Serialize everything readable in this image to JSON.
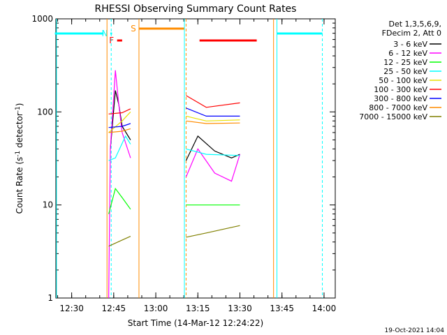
{
  "chart_data": {
    "type": "line",
    "title": "RHESSI Observing Summary Count Rates",
    "xlabel": "Start Time (14-Mar-12 12:24:22)",
    "ylabel": "Count Rate (s",
    "ylabel_sup": "-1",
    "ylabel_mid": " detector",
    "ylabel_sup2": "-1",
    "ylabel_end": ")",
    "yscale": "log",
    "ylim": [
      1,
      1000
    ],
    "xlim": [
      "12:24:22",
      "14:04:00"
    ],
    "xticks": [
      "12:30",
      "12:45",
      "13:00",
      "13:15",
      "13:30",
      "13:45",
      "14:00"
    ],
    "yticks": [
      "1",
      "10",
      "100",
      "1000"
    ],
    "legend_header": [
      "Det 1,3,5,6,9,",
      "FDecim 2, Att 0"
    ],
    "series": [
      {
        "name": "3 - 6 keV",
        "color": "#000000",
        "values": [
          [
            12.73,
            40
          ],
          [
            12.76,
            170
          ],
          [
            12.78,
            120
          ],
          [
            12.8,
            70
          ],
          [
            12.85,
            50
          ],
          [
            13.18,
            30
          ],
          [
            13.25,
            55
          ],
          [
            13.35,
            38
          ],
          [
            13.45,
            32
          ],
          [
            13.5,
            35
          ]
        ]
      },
      {
        "name": "6 - 12 keV",
        "color": "#ff00ff",
        "values": [
          [
            12.72,
            1
          ],
          [
            12.73,
            40
          ],
          [
            12.76,
            280
          ],
          [
            12.78,
            120
          ],
          [
            12.8,
            60
          ],
          [
            12.85,
            32
          ],
          [
            13.18,
            20
          ],
          [
            13.25,
            40
          ],
          [
            13.35,
            22
          ],
          [
            13.45,
            18
          ],
          [
            13.5,
            35
          ]
        ]
      },
      {
        "name": "12 - 25 keV",
        "color": "#00ff00",
        "values": [
          [
            12.72,
            8
          ],
          [
            12.76,
            15
          ],
          [
            12.8,
            12
          ],
          [
            12.85,
            9
          ],
          [
            13.18,
            10
          ],
          [
            13.3,
            10
          ],
          [
            13.5,
            10
          ]
        ]
      },
      {
        "name": "25 - 50 keV",
        "color": "#00ffff",
        "values": [
          [
            12.72,
            30
          ],
          [
            12.76,
            32
          ],
          [
            12.82,
            55
          ],
          [
            12.85,
            45
          ],
          [
            13.18,
            40
          ],
          [
            13.3,
            35
          ],
          [
            13.5,
            34
          ]
        ]
      },
      {
        "name": "50 - 100 keV",
        "color": "#e8e000",
        "values": [
          [
            12.72,
            60
          ],
          [
            12.8,
            80
          ],
          [
            12.85,
            100
          ],
          [
            13.18,
            90
          ],
          [
            13.3,
            80
          ],
          [
            13.5,
            82
          ]
        ]
      },
      {
        "name": "100 - 300 keV",
        "color": "#ff0000",
        "values": [
          [
            12.72,
            95
          ],
          [
            12.8,
            98
          ],
          [
            12.85,
            108
          ],
          [
            13.18,
            150
          ],
          [
            13.3,
            112
          ],
          [
            13.5,
            125
          ]
        ]
      },
      {
        "name": "300 - 800 keV",
        "color": "#0000ff",
        "values": [
          [
            12.72,
            68
          ],
          [
            12.8,
            70
          ],
          [
            12.85,
            75
          ],
          [
            13.18,
            110
          ],
          [
            13.3,
            90
          ],
          [
            13.5,
            90
          ]
        ]
      },
      {
        "name": "800 - 7000 keV",
        "color": "#ff8c00",
        "values": [
          [
            12.72,
            60
          ],
          [
            12.8,
            62
          ],
          [
            12.85,
            66
          ],
          [
            13.18,
            80
          ],
          [
            13.3,
            75
          ],
          [
            13.5,
            76
          ]
        ]
      },
      {
        "name": "7000 - 15000 keV",
        "color": "#808000",
        "values": [
          [
            12.72,
            3.6
          ],
          [
            12.8,
            4.2
          ],
          [
            12.85,
            4.6
          ],
          [
            13.18,
            4.5
          ],
          [
            13.3,
            5
          ],
          [
            13.5,
            6
          ]
        ]
      }
    ],
    "flags": [
      {
        "label": "",
        "color": "#00ffff",
        "start": 12.4,
        "end": 12.69
      },
      {
        "label": "F",
        "color": "#ff0000",
        "start": 12.77,
        "end": 12.8
      },
      {
        "label": "N",
        "color": "#00ffff",
        "start": 12.73,
        "end": 12.74
      },
      {
        "label": "S",
        "color": "#ff8c00",
        "start": 12.9,
        "end": 13.17
      },
      {
        "label": "",
        "color": "#ff0000",
        "start": 13.26,
        "end": 13.6
      },
      {
        "label": "",
        "color": "#00ffff",
        "start": 13.72,
        "end": 13.99
      }
    ],
    "timestamp": "19-Oct-2021 14:04"
  }
}
